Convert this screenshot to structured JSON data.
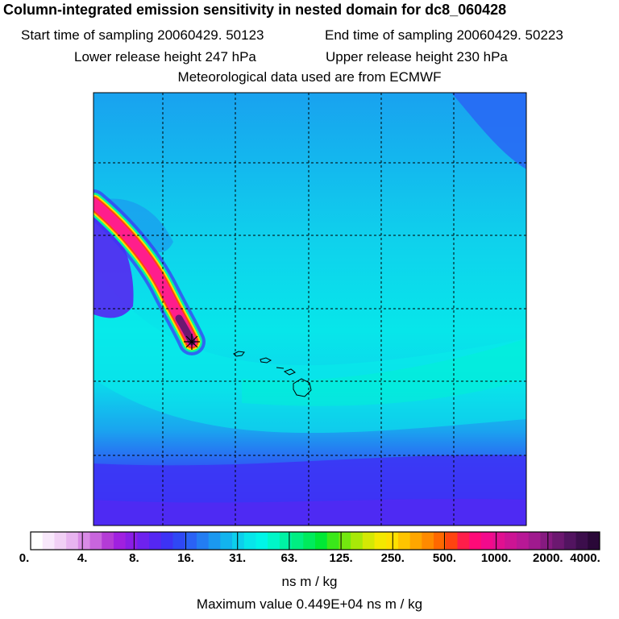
{
  "title": "Column-integrated emission sensitivity in nested domain for dc8_060428",
  "header": {
    "start_label": "Start time of sampling 20060429. 50123",
    "end_label": "End time of sampling 20060429. 50223",
    "lower_label": "Lower release height  247 hPa",
    "upper_label": "Upper release height  230 hPa",
    "met_label": "Meteorological data used are from ECMWF"
  },
  "colorbar": {
    "ticks": [
      "0.",
      "4.",
      "8.",
      "16.",
      "31.",
      "63.",
      "125.",
      "250.",
      "500.",
      "1000.",
      "2000.",
      "4000."
    ],
    "colors": [
      "#ffffff",
      "#f8e8fb",
      "#f1d0f5",
      "#e8b4f0",
      "#d98be6",
      "#c965dd",
      "#b43bd6",
      "#a020e0",
      "#8a1ee6",
      "#6e22ee",
      "#5527f2",
      "#3d33f5",
      "#2f48f5",
      "#2a62f5",
      "#237df2",
      "#1b98ef",
      "#12b4ee",
      "#0ccfec",
      "#07e6ea",
      "#00f5e8",
      "#00f7c8",
      "#00f3a4",
      "#00ef82",
      "#00eb5c",
      "#00e835",
      "#3ae81a",
      "#73e80f",
      "#a8e808",
      "#d4e804",
      "#f4e800",
      "#ffe000",
      "#ffc400",
      "#ffa600",
      "#ff8a00",
      "#ff6800",
      "#ff4410",
      "#ff1e4a",
      "#ff0a78",
      "#f20a8c",
      "#e01090",
      "#cc1494",
      "#b81896",
      "#a01a8e",
      "#861a80",
      "#6c1870",
      "#521460",
      "#3c0e4c",
      "#2a0838"
    ],
    "units": "ns m / kg"
  },
  "max_value": "Maximum value  0.449E+04 ns m / kg",
  "map": {
    "release_point_marker": "asterisk",
    "features": [
      "plume",
      "hawaiian-islands",
      "lat-lon-grid"
    ]
  }
}
